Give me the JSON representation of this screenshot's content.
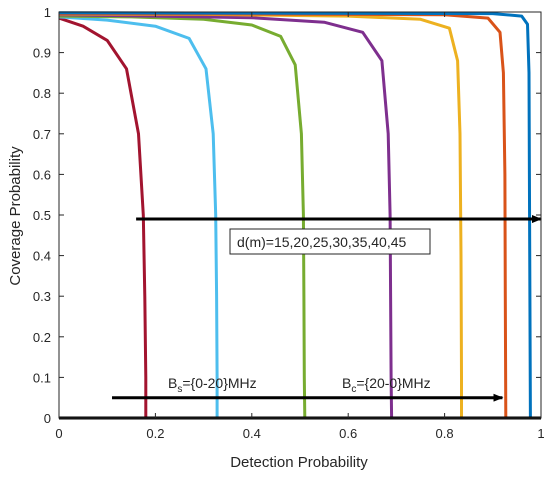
{
  "chart_data": {
    "type": "line",
    "xlabel": "Detection Probability",
    "ylabel": "Coverage Probability",
    "xlim": [
      0,
      1
    ],
    "ylim": [
      0,
      1
    ],
    "x_ticks": [
      "0",
      "0.2",
      "0.4",
      "0.6",
      "0.8",
      "1"
    ],
    "y_ticks": [
      "0",
      "0.1",
      "0.2",
      "0.3",
      "0.4",
      "0.5",
      "0.6",
      "0.7",
      "0.8",
      "0.9",
      "1"
    ],
    "grid": false,
    "series": [
      {
        "color": "#A2142F",
        "points": [
          [
            0,
            0.985
          ],
          [
            0.05,
            0.965
          ],
          [
            0.1,
            0.93
          ],
          [
            0.14,
            0.86
          ],
          [
            0.165,
            0.7
          ],
          [
            0.175,
            0.5
          ],
          [
            0.178,
            0.3
          ],
          [
            0.18,
            0.1
          ],
          [
            0.18,
            0
          ]
        ]
      },
      {
        "color": "#4DBEEE",
        "points": [
          [
            0,
            0.988
          ],
          [
            0.1,
            0.98
          ],
          [
            0.2,
            0.965
          ],
          [
            0.27,
            0.935
          ],
          [
            0.305,
            0.86
          ],
          [
            0.32,
            0.7
          ],
          [
            0.325,
            0.5
          ],
          [
            0.327,
            0.3
          ],
          [
            0.328,
            0.1
          ],
          [
            0.328,
            0
          ]
        ]
      },
      {
        "color": "#77AC30",
        "points": [
          [
            0,
            0.99
          ],
          [
            0.15,
            0.988
          ],
          [
            0.3,
            0.982
          ],
          [
            0.4,
            0.968
          ],
          [
            0.46,
            0.94
          ],
          [
            0.49,
            0.87
          ],
          [
            0.503,
            0.7
          ],
          [
            0.507,
            0.5
          ],
          [
            0.508,
            0.3
          ],
          [
            0.509,
            0.1
          ],
          [
            0.51,
            0
          ]
        ]
      },
      {
        "color": "#7E2F8E",
        "points": [
          [
            0,
            0.993
          ],
          [
            0.2,
            0.99
          ],
          [
            0.4,
            0.986
          ],
          [
            0.55,
            0.975
          ],
          [
            0.63,
            0.95
          ],
          [
            0.67,
            0.88
          ],
          [
            0.683,
            0.7
          ],
          [
            0.687,
            0.5
          ],
          [
            0.688,
            0.3
          ],
          [
            0.689,
            0.1
          ],
          [
            0.69,
            0
          ]
        ]
      },
      {
        "color": "#EDB120",
        "points": [
          [
            0,
            0.995
          ],
          [
            0.3,
            0.994
          ],
          [
            0.6,
            0.99
          ],
          [
            0.75,
            0.982
          ],
          [
            0.81,
            0.96
          ],
          [
            0.827,
            0.88
          ],
          [
            0.832,
            0.7
          ],
          [
            0.834,
            0.4
          ],
          [
            0.835,
            0.1
          ],
          [
            0.835,
            0
          ]
        ]
      },
      {
        "color": "#D95319",
        "points": [
          [
            0,
            0.996
          ],
          [
            0.4,
            0.995
          ],
          [
            0.8,
            0.993
          ],
          [
            0.89,
            0.985
          ],
          [
            0.915,
            0.95
          ],
          [
            0.922,
            0.85
          ],
          [
            0.925,
            0.6
          ],
          [
            0.926,
            0.3
          ],
          [
            0.927,
            0
          ]
        ]
      },
      {
        "color": "#0072BD",
        "points": [
          [
            0,
            0.998
          ],
          [
            0.5,
            0.997
          ],
          [
            0.9,
            0.996
          ],
          [
            0.96,
            0.99
          ],
          [
            0.972,
            0.97
          ],
          [
            0.975,
            0.85
          ],
          [
            0.976,
            0.6
          ],
          [
            0.977,
            0.3
          ],
          [
            0.978,
            0
          ]
        ]
      }
    ],
    "annotations": {
      "distance_label": "d(m)=15,20,25,30,35,40,45",
      "bs_label": {
        "base": "B",
        "sub": "s",
        "rest": "={0-20}MHz"
      },
      "bc_label": {
        "base": "B",
        "sub": "c",
        "rest": "={20-0}MHz"
      }
    },
    "arrows": [
      {
        "name": "distance",
        "from": [
          0.16,
          0.49
        ],
        "to": [
          1.0,
          0.49
        ]
      },
      {
        "name": "bandwidth",
        "from": [
          0.11,
          0.05
        ],
        "to": [
          0.92,
          0.05
        ]
      }
    ]
  }
}
